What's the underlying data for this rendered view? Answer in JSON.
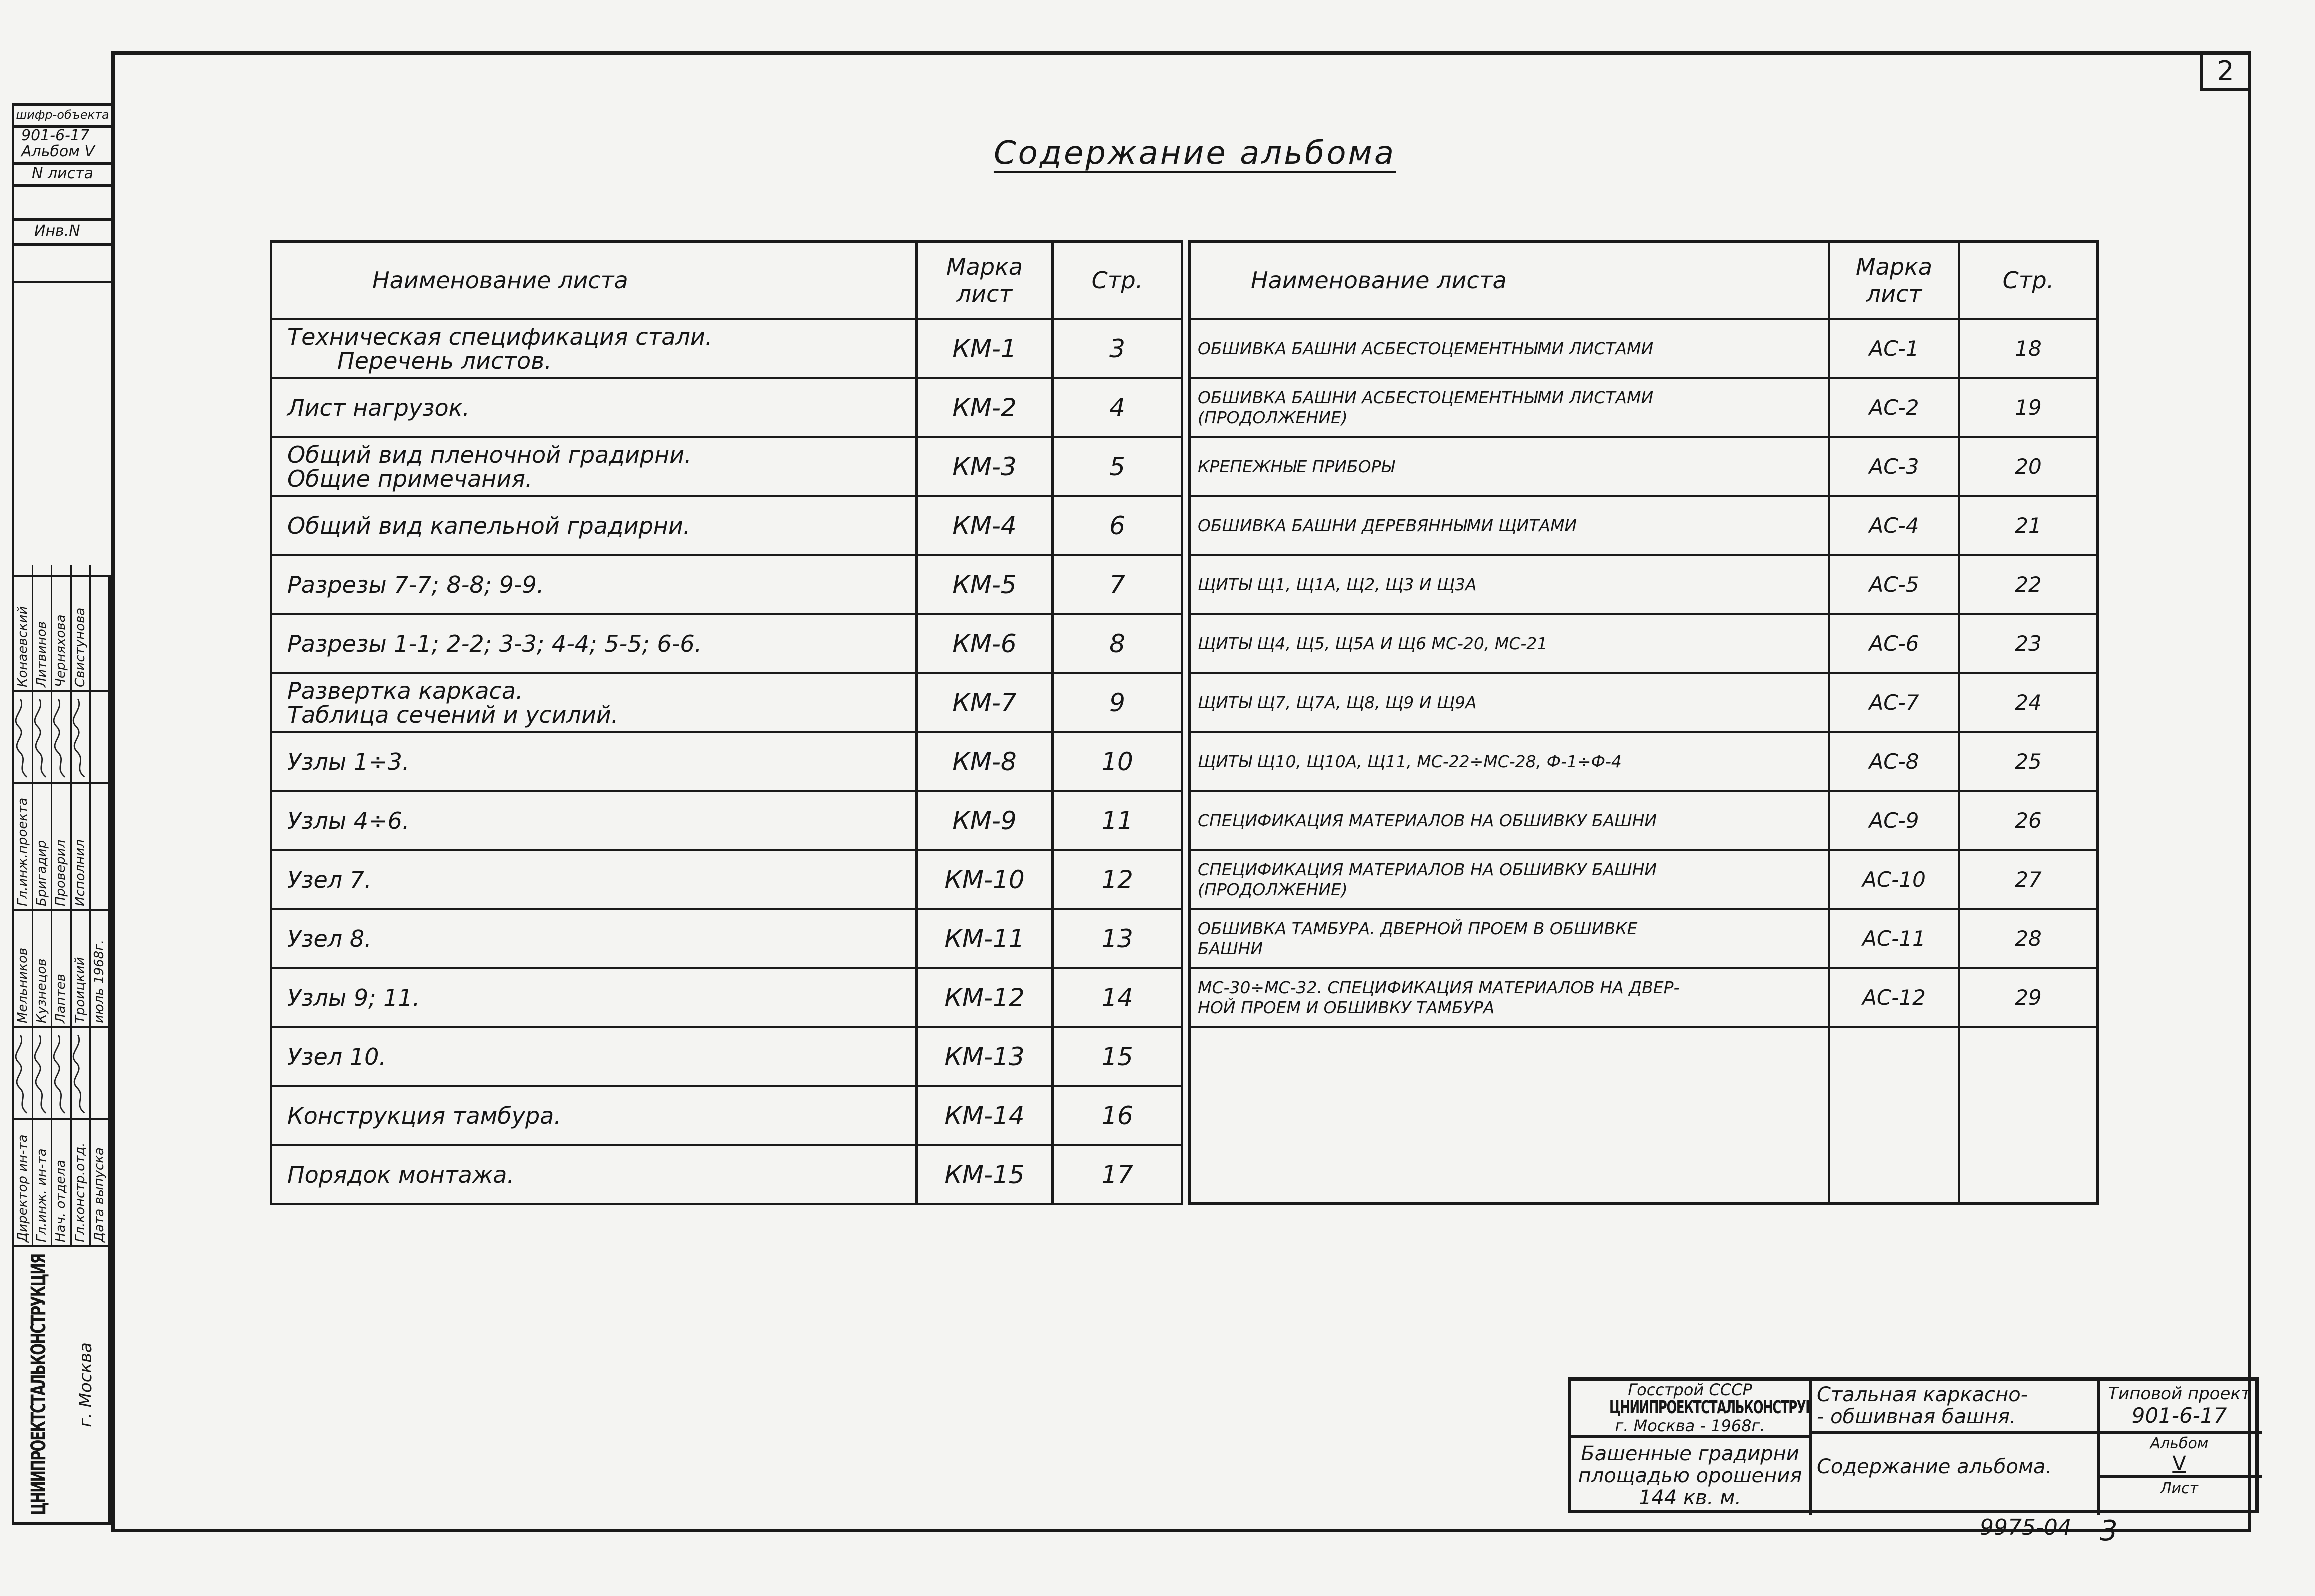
{
  "page_number": "2",
  "title": "Содержание альбома",
  "headers": {
    "name": "Наименование листа",
    "mark_line1": "Марка",
    "mark_line2": "лист",
    "page": "Стр."
  },
  "left_rows": [
    {
      "lines": [
        "Техническая спецификация стали.",
        "Перечень листов."
      ],
      "mark": "КМ-1",
      "page": "3"
    },
    {
      "lines": [
        "Лист нагрузок."
      ],
      "mark": "КМ-2",
      "page": "4"
    },
    {
      "lines": [
        "Общий вид пленочной градирни.",
        "Общие примечания."
      ],
      "mark": "КМ-3",
      "page": "5"
    },
    {
      "lines": [
        "Общий вид капельной градирни."
      ],
      "mark": "КМ-4",
      "page": "6"
    },
    {
      "lines": [
        "Разрезы 7-7; 8-8; 9-9."
      ],
      "mark": "КМ-5",
      "page": "7"
    },
    {
      "lines": [
        "Разрезы 1-1; 2-2; 3-3; 4-4; 5-5; 6-6."
      ],
      "mark": "КМ-6",
      "page": "8"
    },
    {
      "lines": [
        "Развертка каркаса.",
        "Таблица сечений и усилий."
      ],
      "mark": "КМ-7",
      "page": "9"
    },
    {
      "lines": [
        "Узлы 1÷3."
      ],
      "mark": "КМ-8",
      "page": "10",
      "indent": true
    },
    {
      "lines": [
        "Узлы 4÷6."
      ],
      "mark": "КМ-9",
      "page": "11",
      "indent": true
    },
    {
      "lines": [
        "Узел 7."
      ],
      "mark": "КМ-10",
      "page": "12",
      "indent": true
    },
    {
      "lines": [
        "Узел 8."
      ],
      "mark": "КМ-11",
      "page": "13",
      "indent": true
    },
    {
      "lines": [
        "Узлы 9; 11."
      ],
      "mark": "КМ-12",
      "page": "14",
      "indent": true
    },
    {
      "lines": [
        "Узел 10."
      ],
      "mark": "КМ-13",
      "page": "15",
      "indent": true
    },
    {
      "lines": [
        "Конструкция тамбура."
      ],
      "mark": "КМ-14",
      "page": "16"
    },
    {
      "lines": [
        "Порядок монтажа."
      ],
      "mark": "КМ-15",
      "page": "17"
    }
  ],
  "right_rows": [
    {
      "lines": [
        "ОБШИВКА БАШНИ АСБЕСТОЦЕМЕНТНЫМИ ЛИСТАМИ"
      ],
      "mark": "АС-1",
      "page": "18"
    },
    {
      "lines": [
        "ОБШИВКА БАШНИ АСБЕСТОЦЕМЕНТНЫМИ ЛИСТАМИ",
        "(ПРОДОЛЖЕНИЕ)"
      ],
      "mark": "АС-2",
      "page": "19"
    },
    {
      "lines": [
        "КРЕПЕЖНЫЕ ПРИБОРЫ"
      ],
      "mark": "АС-3",
      "page": "20"
    },
    {
      "lines": [
        "ОБШИВКА БАШНИ ДЕРЕВЯННЫМИ ЩИТАМИ"
      ],
      "mark": "АС-4",
      "page": "21"
    },
    {
      "lines": [
        "ЩИТЫ Щ1, Щ1А, Щ2, Щ3 И Щ3А"
      ],
      "mark": "АС-5",
      "page": "22"
    },
    {
      "lines": [
        "ЩИТЫ Щ4, Щ5, Щ5А И Щ6 МС-20, МС-21"
      ],
      "mark": "АС-6",
      "page": "23"
    },
    {
      "lines": [
        "ЩИТЫ Щ7, Щ7А, Щ8, Щ9 И Щ9А"
      ],
      "mark": "АС-7",
      "page": "24"
    },
    {
      "lines": [
        "ЩИТЫ Щ10, Щ10А, Щ11, МС-22÷МС-28, Ф-1÷Ф-4"
      ],
      "mark": "АС-8",
      "page": "25"
    },
    {
      "lines": [
        "СПЕЦИФИКАЦИЯ МАТЕРИАЛОВ НА ОБШИВКУ БАШНИ"
      ],
      "mark": "АС-9",
      "page": "26"
    },
    {
      "lines": [
        "СПЕЦИФИКАЦИЯ МАТЕРИАЛОВ НА ОБШИВКУ БАШНИ",
        "(ПРОДОЛЖЕНИЕ)"
      ],
      "mark": "АС-10",
      "page": "27"
    },
    {
      "lines": [
        "ОБШИВКА ТАМБУРА. ДВЕРНОЙ ПРОЕМ В ОБШИВКЕ",
        "БАШНИ"
      ],
      "mark": "АС-11",
      "page": "28"
    },
    {
      "lines": [
        "МС-30÷МС-32. СПЕЦИФИКАЦИЯ МАТЕРИАЛОВ НА ДВЕР-",
        "НОЙ ПРОЕМ И ОБШИВКУ ТАМБУРА"
      ],
      "mark": "АС-12",
      "page": "29"
    }
  ],
  "title_block": {
    "org_top": "Госстрой СССР",
    "org_name": "ЦНИИПРОЕКТСТАЛЬКОНСТРУКЦИЯ",
    "org_city": "г. Москва - 1968г.",
    "object_line1": "Башенные градирни",
    "object_line2": "площадью орошения",
    "object_line3": "144 кв. м.",
    "structure_line1": "Стальная каркасно-",
    "structure_line2": "- обшивная башня.",
    "sheet_title": "Содержание альбома.",
    "project_label": "Типовой проект",
    "project_code": "901-6-17",
    "album_label": "Альбом",
    "album_value": "V",
    "sheet_label": "Лист"
  },
  "doc_number": "9975-04",
  "sheet_number": "3",
  "sidebar_top": {
    "code_label": "шифр-объекта",
    "code_value": "901-6-17",
    "album": "Альбом V",
    "sheet_no_label": "N листа",
    "inventory_label": "Инв.N"
  },
  "sidebar_stamp": {
    "org_name": "ЦНИИПРОЕКТСТАЛЬКОНСТРУКЦИЯ",
    "city": "г. Москва",
    "roles_a": [
      "Директор ин-та",
      "Гл.инж. ин-та",
      "Нач. отдела",
      "Гл.констр.отд.",
      "Дата выпуска"
    ],
    "names_a": [
      "Мельников",
      "Кузнецов",
      "Лаптев",
      "Троицкий",
      "июль 1968г."
    ],
    "roles_b": [
      "Гл.инж.проекта",
      "Бригадир",
      "Проверил",
      "Исполнил",
      ""
    ],
    "names_b": [
      "Конаевский",
      "Литвинов",
      "Черняхова",
      "Свистунова",
      ""
    ]
  }
}
